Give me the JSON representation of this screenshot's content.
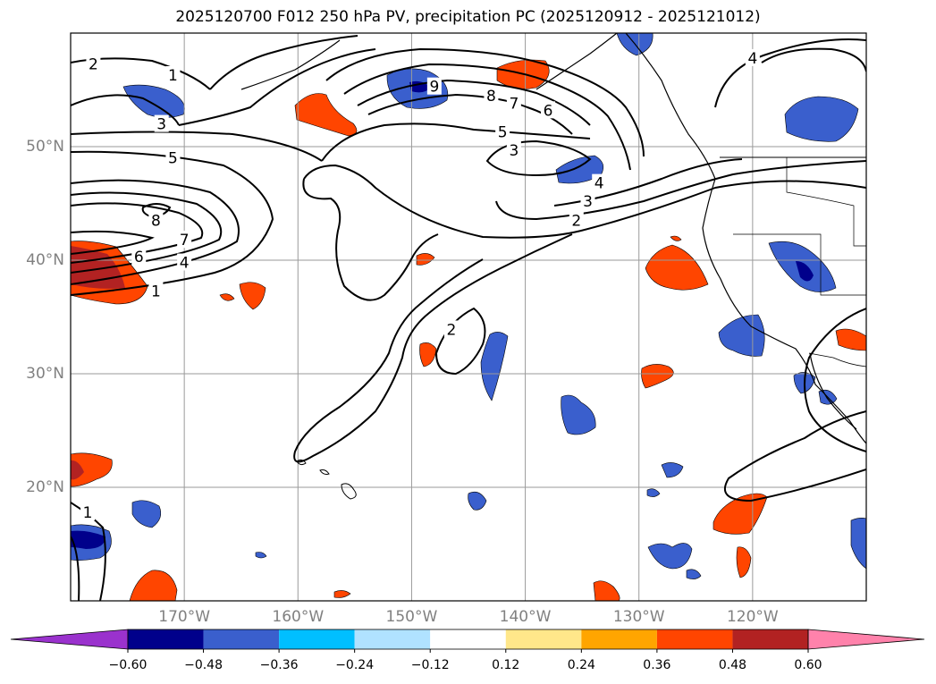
{
  "title": "2025120700 F012 250 hPa PV, precipitation PC (2025120912 - 2025121012)",
  "map": {
    "region": "North Pacific / western North America",
    "lon_range": [
      -180,
      -110
    ],
    "lat_range": [
      10,
      60
    ],
    "lat_labels": [
      {
        "text": "50°N",
        "lat": 50
      },
      {
        "text": "40°N",
        "lat": 40
      },
      {
        "text": "30°N",
        "lat": 30
      },
      {
        "text": "20°N",
        "lat": 20
      }
    ],
    "lon_labels": [
      {
        "text": "170°W",
        "lon": -170
      },
      {
        "text": "160°W",
        "lon": -160
      },
      {
        "text": "150°W",
        "lon": -150
      },
      {
        "text": "140°W",
        "lon": -140
      },
      {
        "text": "130°W",
        "lon": -130
      },
      {
        "text": "120°W",
        "lon": -120
      }
    ],
    "pv_contour_labels": [
      {
        "text": "2",
        "lon": -178,
        "lat": 57.3
      },
      {
        "text": "1",
        "lon": -171,
        "lat": 56.3
      },
      {
        "text": "3",
        "lon": -172,
        "lat": 52
      },
      {
        "text": "5",
        "lon": -171,
        "lat": 49
      },
      {
        "text": "8",
        "lon": -172.5,
        "lat": 43.5
      },
      {
        "text": "7",
        "lon": -170,
        "lat": 41.8
      },
      {
        "text": "6",
        "lon": -174,
        "lat": 40.3
      },
      {
        "text": "4",
        "lon": -170,
        "lat": 39.8
      },
      {
        "text": "1",
        "lon": -172.5,
        "lat": 37.3
      },
      {
        "text": "9",
        "lon": -148,
        "lat": 55.3
      },
      {
        "text": "8",
        "lon": -143,
        "lat": 54.5
      },
      {
        "text": "7",
        "lon": -141,
        "lat": 53.8
      },
      {
        "text": "6",
        "lon": -138,
        "lat": 53.2
      },
      {
        "text": "5",
        "lon": -142,
        "lat": 51.3
      },
      {
        "text": "3",
        "lon": -141,
        "lat": 49.7
      },
      {
        "text": "4",
        "lon": -133.5,
        "lat": 46.8
      },
      {
        "text": "3",
        "lon": -134.5,
        "lat": 45.2
      },
      {
        "text": "2",
        "lon": -135.5,
        "lat": 43.5
      },
      {
        "text": "2",
        "lon": -146.5,
        "lat": 33.9
      },
      {
        "text": "1",
        "lon": -178.5,
        "lat": 17.8
      },
      {
        "text": "4",
        "lon": -120,
        "lat": 57.8
      }
    ],
    "colors": {
      "contour": "#000000",
      "grid": "#9a9a9a",
      "coast": "#000000"
    }
  },
  "colorbar": {
    "levels": [
      "−0.60",
      "−0.48",
      "−0.36",
      "−0.24",
      "−0.12",
      "0.12",
      "0.24",
      "0.36",
      "0.48",
      "0.60"
    ],
    "colors": [
      "#9a32cd",
      "#00008b",
      "#3a5fcd",
      "#00bfff",
      "#b0e2ff",
      "#ffffff",
      "#ffe78a",
      "#ffa500",
      "#ff4500",
      "#b22222",
      "#ff82ab"
    ]
  }
}
